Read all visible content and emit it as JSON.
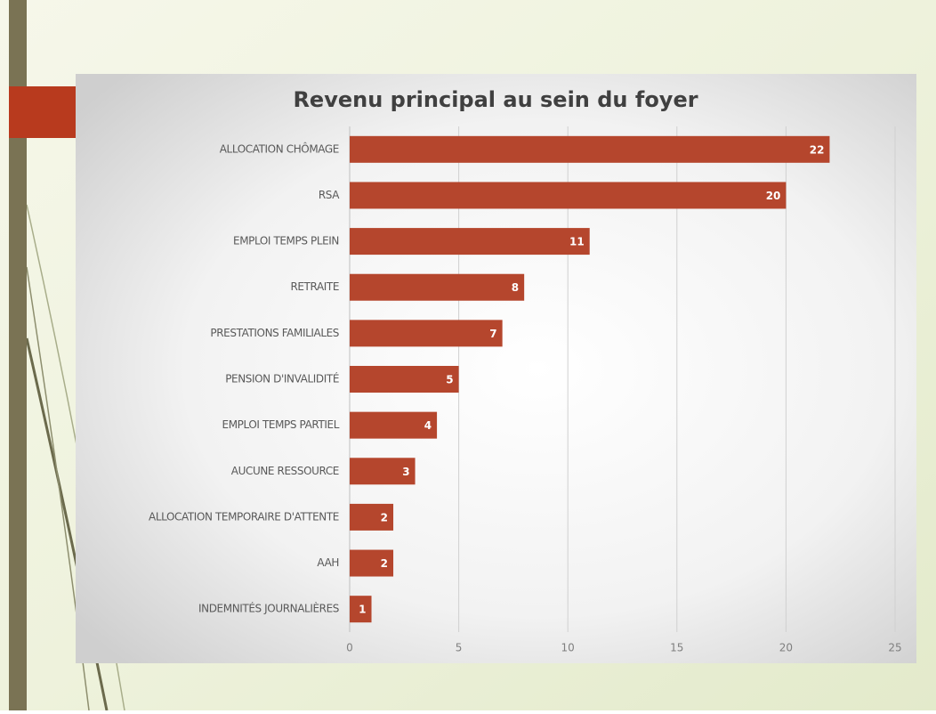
{
  "chart_data": {
    "type": "bar",
    "orientation": "horizontal",
    "title": "Revenu principal au sein du foyer",
    "categories": [
      "ALLOCATION CHÔMAGE",
      "RSA",
      "EMPLOI TEMPS PLEIN",
      "RETRAITE",
      "PRESTATIONS FAMILIALES",
      "PENSION D'INVALIDITÉ",
      "EMPLOI TEMPS PARTIEL",
      "AUCUNE RESSOURCE",
      "ALLOCATION TEMPORAIRE D'ATTENTE",
      "AAH",
      "INDEMNITÉS JOURNALIÈRES"
    ],
    "values": [
      22,
      20,
      11,
      8,
      7,
      5,
      4,
      3,
      2,
      2,
      1
    ],
    "color": "#b5462d",
    "xlim": [
      0,
      25
    ],
    "xticks": [
      0,
      5,
      10,
      15,
      20,
      25
    ],
    "grid": true
  }
}
